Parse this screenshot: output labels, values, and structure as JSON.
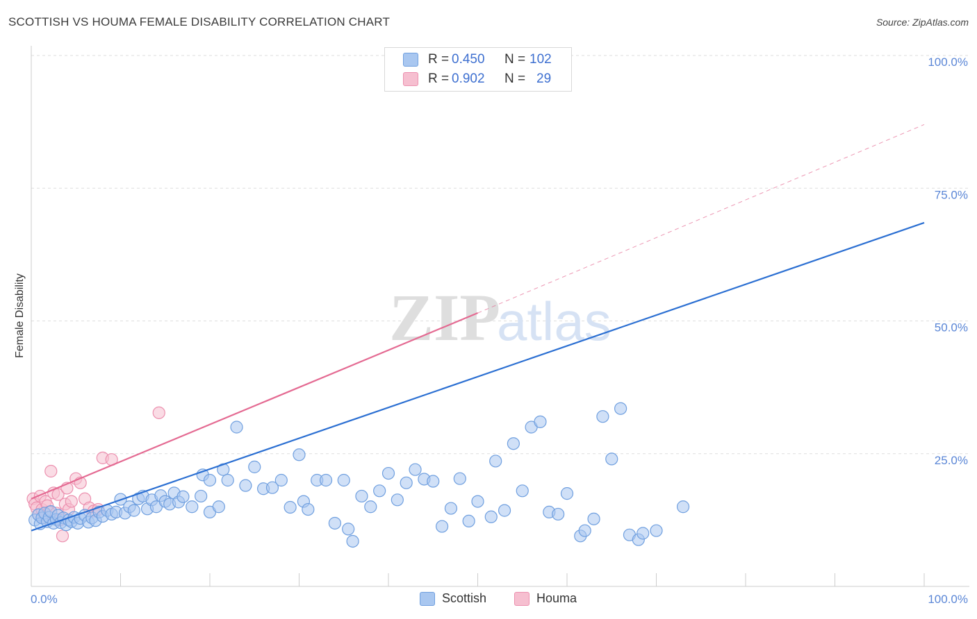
{
  "header": {
    "title": "SCOTTISH VS HOUMA FEMALE DISABILITY CORRELATION CHART",
    "source": "Source: ZipAtlas.com"
  },
  "legend": {
    "scottish": {
      "r_label": "R =",
      "r_value": "0.450",
      "n_label": "N =",
      "n_value": "102"
    },
    "houma": {
      "r_label": "R =",
      "r_value": "0.902",
      "n_label": "N =",
      "n_value": "29"
    }
  },
  "watermark": {
    "zip": "ZIP",
    "atlas": "atlas"
  },
  "colors": {
    "scottish_fill": "#a9c7f0",
    "scottish_stroke": "#6f9fdf",
    "scottish_line": "#2b6fd2",
    "houma_fill": "#f6bfd0",
    "houma_stroke": "#ec8fae",
    "houma_line": "#e46a92",
    "grid": "#dddddd",
    "tick_text": "#5a86d6"
  },
  "chart_data": {
    "type": "scatter",
    "title": "SCOTTISH VS HOUMA FEMALE DISABILITY CORRELATION CHART",
    "xlabel": "",
    "ylabel": "Female Disability",
    "xlim": [
      0,
      100
    ],
    "ylim": [
      0,
      100
    ],
    "x_tick_labels": [
      "0.0%",
      "100.0%"
    ],
    "y_ticks": [
      25,
      50,
      75,
      100
    ],
    "y_tick_labels": [
      "25.0%",
      "50.0%",
      "75.0%",
      "100.0%"
    ],
    "grid": true,
    "legend_bottom": [
      "Scottish",
      "Houma"
    ],
    "series": [
      {
        "name": "Scottish",
        "r": 0.45,
        "n": 102,
        "trend": {
          "x": [
            0,
            100
          ],
          "y": [
            10.5,
            68.5
          ],
          "style": "solid"
        },
        "points": [
          [
            0.4,
            12.5
          ],
          [
            0.8,
            13.5
          ],
          [
            1.0,
            11.8
          ],
          [
            1.2,
            12.9
          ],
          [
            1.5,
            13.8
          ],
          [
            1.8,
            12.2
          ],
          [
            2.0,
            13.0
          ],
          [
            2.2,
            14.1
          ],
          [
            2.5,
            11.9
          ],
          [
            2.8,
            12.6
          ],
          [
            3.0,
            13.4
          ],
          [
            3.3,
            12.0
          ],
          [
            3.6,
            12.9
          ],
          [
            3.9,
            11.6
          ],
          [
            4.2,
            12.5
          ],
          [
            4.5,
            12.2
          ],
          [
            4.8,
            13.0
          ],
          [
            5.2,
            11.9
          ],
          [
            5.5,
            12.8
          ],
          [
            6.0,
            13.4
          ],
          [
            6.4,
            12.1
          ],
          [
            6.8,
            12.9
          ],
          [
            7.2,
            12.4
          ],
          [
            7.6,
            14.0
          ],
          [
            8.0,
            13.2
          ],
          [
            8.5,
            14.3
          ],
          [
            9.0,
            13.6
          ],
          [
            9.5,
            14.0
          ],
          [
            10.0,
            16.4
          ],
          [
            10.5,
            13.8
          ],
          [
            11.0,
            15.0
          ],
          [
            11.5,
            14.3
          ],
          [
            12.0,
            16.5
          ],
          [
            12.5,
            17.0
          ],
          [
            13.0,
            14.6
          ],
          [
            13.5,
            16.3
          ],
          [
            14.0,
            15.0
          ],
          [
            14.5,
            17.1
          ],
          [
            15.0,
            16.0
          ],
          [
            15.5,
            15.5
          ],
          [
            16.0,
            17.6
          ],
          [
            16.5,
            15.9
          ],
          [
            17.0,
            16.9
          ],
          [
            18.0,
            15.0
          ],
          [
            19.0,
            17.0
          ],
          [
            20.0,
            14.0
          ],
          [
            21.0,
            15.0
          ],
          [
            19.2,
            21.0
          ],
          [
            20.0,
            20.0
          ],
          [
            21.5,
            22.0
          ],
          [
            22.0,
            20.0
          ],
          [
            23.0,
            30.0
          ],
          [
            24.0,
            19.0
          ],
          [
            25.0,
            22.5
          ],
          [
            26.0,
            18.4
          ],
          [
            27.0,
            18.6
          ],
          [
            28.0,
            20.0
          ],
          [
            29.0,
            14.9
          ],
          [
            30.0,
            24.8
          ],
          [
            30.5,
            16.0
          ],
          [
            31.0,
            14.5
          ],
          [
            32.0,
            20.0
          ],
          [
            33.0,
            20.0
          ],
          [
            34.0,
            11.9
          ],
          [
            35.0,
            20.0
          ],
          [
            35.5,
            10.8
          ],
          [
            36.0,
            8.5
          ],
          [
            37.0,
            17.0
          ],
          [
            38.0,
            15.0
          ],
          [
            39.0,
            18.0
          ],
          [
            40.0,
            21.3
          ],
          [
            41.0,
            16.3
          ],
          [
            42.0,
            19.5
          ],
          [
            43.0,
            22.0
          ],
          [
            44.0,
            20.2
          ],
          [
            45.0,
            19.8
          ],
          [
            46.0,
            11.3
          ],
          [
            47.0,
            14.7
          ],
          [
            48.0,
            20.3
          ],
          [
            49.0,
            12.3
          ],
          [
            50.0,
            16.0
          ],
          [
            51.5,
            13.1
          ],
          [
            52.0,
            23.6
          ],
          [
            53.0,
            14.3
          ],
          [
            54.0,
            26.9
          ],
          [
            55.0,
            18.0
          ],
          [
            56.0,
            30.0
          ],
          [
            57.0,
            31.0
          ],
          [
            58.0,
            14.0
          ],
          [
            59.0,
            13.6
          ],
          [
            60.0,
            17.5
          ],
          [
            61.5,
            9.5
          ],
          [
            62.0,
            10.5
          ],
          [
            63.0,
            12.7
          ],
          [
            64.0,
            32.0
          ],
          [
            65.0,
            24.0
          ],
          [
            66.0,
            33.5
          ],
          [
            67.0,
            9.7
          ],
          [
            68.0,
            8.8
          ],
          [
            68.5,
            10.0
          ],
          [
            70.0,
            10.5
          ],
          [
            73.0,
            15.0
          ]
        ]
      },
      {
        "name": "Houma",
        "r": 0.902,
        "n": 29,
        "trend": {
          "x": [
            0,
            50
          ],
          "y": [
            16.5,
            51.5
          ],
          "style": "solid",
          "extension": {
            "x": [
              50,
              100
            ],
            "y": [
              51.5,
              87.0
            ],
            "style": "dashed"
          }
        },
        "points": [
          [
            0.2,
            16.5
          ],
          [
            0.4,
            15.5
          ],
          [
            0.6,
            14.8
          ],
          [
            0.8,
            13.5
          ],
          [
            1.0,
            17.0
          ],
          [
            1.2,
            14.5
          ],
          [
            1.4,
            12.9
          ],
          [
            1.6,
            16.0
          ],
          [
            1.8,
            15.2
          ],
          [
            2.0,
            14.0
          ],
          [
            2.2,
            21.7
          ],
          [
            2.5,
            17.6
          ],
          [
            2.8,
            13.8
          ],
          [
            3.0,
            17.3
          ],
          [
            3.2,
            12.5
          ],
          [
            3.5,
            9.5
          ],
          [
            3.8,
            15.5
          ],
          [
            4.0,
            18.5
          ],
          [
            4.2,
            14.5
          ],
          [
            4.5,
            16.0
          ],
          [
            5.0,
            20.3
          ],
          [
            5.5,
            19.5
          ],
          [
            6.0,
            16.5
          ],
          [
            6.5,
            14.8
          ],
          [
            7.0,
            14.2
          ],
          [
            7.5,
            14.5
          ],
          [
            8.0,
            24.2
          ],
          [
            9.0,
            23.9
          ],
          [
            14.3,
            32.7
          ]
        ]
      }
    ]
  }
}
